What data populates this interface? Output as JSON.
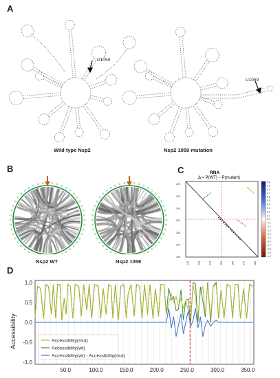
{
  "panelA": {
    "label": "A",
    "left_caption": "Wild type Nsp2",
    "right_caption": "Nsp2 1059 mutation",
    "left_annotation": "C1059",
    "right_annotation": "U1059"
  },
  "panelB": {
    "label": "B",
    "left_caption": "Nsp2 WT",
    "right_caption": "Nsp2 1059"
  },
  "panelC": {
    "label": "C",
    "title": "RNA",
    "subtitle": "Δ = P(WT) − P(mutant)",
    "colorbar_ticks": [
      "1.0",
      "0.9",
      "0.8",
      "0.7",
      "0.6",
      "0.5",
      "0.4",
      "0.3",
      "0.2",
      "0.1",
      "0.0",
      "-0.1",
      "-0.2",
      "-0.3",
      "-0.4",
      "-0.5",
      "-0.6",
      "-0.7",
      "-0.8",
      "-0.9",
      "-1.0"
    ],
    "y_ticks": [
      "220",
      "230",
      "240",
      "250",
      "260",
      "270",
      "280"
    ],
    "x_ticks": [
      "220",
      "230",
      "240",
      "250",
      "260",
      "270",
      "280"
    ]
  },
  "panelD": {
    "label": "D",
    "colors": {
      "mut": "#b8b420",
      "wt": "#3c8a4e",
      "diff": "#3b6fc4",
      "mutation_line": "#cc2a2a"
    },
    "chart_data": {
      "type": "line",
      "ylabel": "Accessibility",
      "xlim": [
        0,
        360
      ],
      "ylim": [
        -1.05,
        1.05
      ],
      "yticks": [
        "1.0",
        "0.5",
        "0.0",
        "-0.5",
        "-1.0"
      ],
      "xticks": [
        "50.0",
        "100.0",
        "150.0",
        "200.0",
        "250.0",
        "300.0",
        "350.0"
      ],
      "grid": "vertical",
      "legend_position": "lower-left",
      "mutation_position": 255,
      "series": [
        {
          "name": "Accessibility(mut)",
          "segments": [
            [
              0,
              0.15,
              0
            ],
            [
              4,
              0.9,
              1
            ],
            [
              9,
              0.85,
              0
            ],
            [
              14,
              0.1,
              0
            ],
            [
              18,
              0.95,
              1
            ],
            [
              22,
              0.9,
              0
            ],
            [
              27,
              0.2,
              0
            ],
            [
              30,
              0.95,
              1
            ],
            [
              34,
              0.1,
              0
            ],
            [
              37,
              0.95,
              1
            ],
            [
              41,
              0.95,
              0
            ],
            [
              44,
              0.05,
              0
            ],
            [
              48,
              0.6,
              1
            ],
            [
              51,
              0.2,
              0
            ],
            [
              54,
              0.95,
              1
            ],
            [
              58,
              0.9,
              0
            ],
            [
              62,
              0.1,
              0
            ],
            [
              66,
              0.95,
              1
            ],
            [
              72,
              0.9,
              0
            ],
            [
              76,
              0.15,
              0
            ],
            [
              80,
              0.95,
              1
            ],
            [
              85,
              0.3,
              0
            ],
            [
              89,
              0.95,
              1
            ],
            [
              93,
              0.1,
              0
            ],
            [
              98,
              0.95,
              1
            ],
            [
              104,
              0.9,
              0
            ],
            [
              108,
              0.1,
              0
            ],
            [
              112,
              0.85,
              1
            ],
            [
              117,
              0.2,
              0
            ],
            [
              121,
              0.95,
              1
            ],
            [
              125,
              0.9,
              0
            ],
            [
              128,
              0.1,
              0
            ],
            [
              132,
              0.95,
              1
            ],
            [
              137,
              0.05,
              0
            ],
            [
              141,
              0.9,
              1
            ],
            [
              146,
              0.95,
              0
            ],
            [
              150,
              0.1,
              0
            ],
            [
              153,
              0.7,
              1
            ],
            [
              158,
              0.95,
              1
            ],
            [
              163,
              0.15,
              0
            ],
            [
              167,
              0.95,
              1
            ],
            [
              172,
              0.9,
              0
            ],
            [
              176,
              0.1,
              0
            ],
            [
              180,
              0.95,
              1
            ],
            [
              185,
              0.2,
              0
            ],
            [
              189,
              0.95,
              1
            ],
            [
              194,
              0.1,
              0
            ],
            [
              198,
              0.85,
              1
            ],
            [
              203,
              0.15,
              0
            ],
            [
              207,
              0.95,
              1
            ],
            [
              212,
              0.95,
              0
            ],
            [
              216,
              0.2,
              0
            ],
            [
              220,
              0.5,
              1
            ],
            [
              224,
              0.7,
              1
            ],
            [
              228,
              0.5,
              1
            ],
            [
              232,
              0.65,
              1
            ],
            [
              236,
              0.4,
              1
            ],
            [
              240,
              0.6,
              1
            ],
            [
              244,
              0.35,
              1
            ],
            [
              248,
              0.55,
              1
            ],
            [
              252,
              0.3,
              0
            ],
            [
              256,
              0.1,
              0
            ],
            [
              260,
              0.95,
              1
            ],
            [
              264,
              0.6,
              1
            ],
            [
              268,
              0.15,
              0
            ],
            [
              272,
              0.75,
              1
            ],
            [
              276,
              0.9,
              1
            ],
            [
              280,
              0.2,
              0
            ],
            [
              284,
              0.95,
              1
            ],
            [
              289,
              0.1,
              0
            ],
            [
              293,
              0.9,
              1
            ],
            [
              298,
              0.95,
              0
            ],
            [
              302,
              0.1,
              0
            ],
            [
              306,
              0.8,
              1
            ],
            [
              311,
              0.1,
              0
            ],
            [
              316,
              0.95,
              1
            ],
            [
              321,
              0.9,
              0
            ],
            [
              325,
              0.1,
              0
            ],
            [
              329,
              0.95,
              1
            ],
            [
              334,
              0.95,
              0
            ],
            [
              338,
              0.1,
              0
            ],
            [
              343,
              0.85,
              1
            ],
            [
              348,
              0.1,
              0
            ],
            [
              353,
              0.95,
              1
            ],
            [
              358,
              0.9,
              0
            ]
          ]
        },
        {
          "name": "Accessibility(wt)",
          "segments": "same_as_mut_outside_220_300"
        },
        {
          "name": "Accessibility(wt) - Accessibility(mut)",
          "values_note": "near zero except 220-300"
        }
      ]
    }
  }
}
